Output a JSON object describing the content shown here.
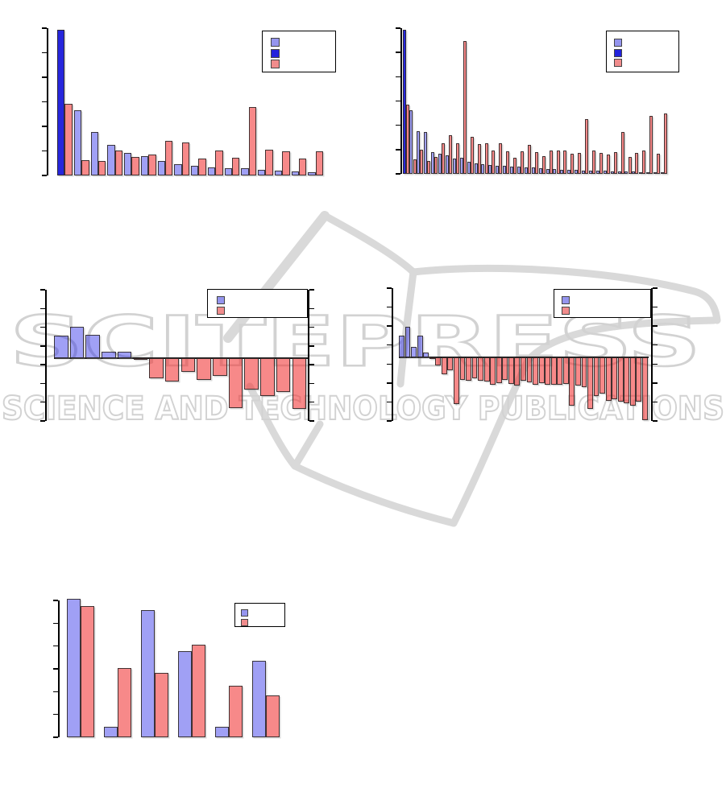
{
  "watermark": {
    "line1": "SCITEPRESS",
    "line2": "SCIENCE AND TECHNOLOGY PUBLICATIONS",
    "text_color": "#d2d2d2",
    "logo_color": "#d9d9d9",
    "logo_name": "open-book-logo"
  },
  "colors": {
    "light_blue": "rgba(28,28,230,0.42)",
    "dark_blue": "rgba(24,24,218,0.94)",
    "red": "rgba(242,52,52,0.58)",
    "swatch_light_blue": "#9595ee",
    "swatch_dark_blue": "#2222dd",
    "swatch_red": "#f08c8c",
    "axis": "#000000"
  },
  "chart_data": [
    {
      "name": "top-left-grouped-bar-chart",
      "type": "bar",
      "title": "",
      "xlabel": "",
      "ylabel": "",
      "x_tick_labels": [],
      "y_tick_labels": [],
      "ylim": [
        0,
        1
      ],
      "grid": false,
      "legend_position": "top-right",
      "legend": [
        "",
        "",
        ""
      ],
      "legend_swatch_colors": [
        "swatch_light_blue",
        "swatch_dark_blue",
        "swatch_red"
      ],
      "highlight_first_bar": true,
      "series": [
        {
          "name": "blue",
          "values": [
            1.0,
            0.45,
            0.3,
            0.21,
            0.155,
            0.135,
            0.1,
            0.075,
            0.065,
            0.055,
            0.05,
            0.047,
            0.04,
            0.035,
            0.025,
            0.02
          ]
        },
        {
          "name": "red",
          "values": [
            0.49,
            0.105,
            0.1,
            0.17,
            0.125,
            0.145,
            0.235,
            0.225,
            0.115,
            0.17,
            0.12,
            0.47,
            0.175,
            0.165,
            0.115,
            0.165
          ]
        }
      ]
    },
    {
      "name": "top-right-grouped-bar-chart",
      "type": "bar",
      "title": "",
      "xlabel": "",
      "ylabel": "",
      "x_tick_labels": [],
      "y_tick_labels": [],
      "ylim": [
        0,
        1
      ],
      "grid": false,
      "legend_position": "top-right",
      "legend": [
        "",
        "",
        ""
      ],
      "legend_swatch_colors": [
        "swatch_light_blue",
        "swatch_dark_blue",
        "swatch_red"
      ],
      "highlight_first_bar": true,
      "series": [
        {
          "name": "blue",
          "values": [
            1.0,
            0.44,
            0.295,
            0.29,
            0.15,
            0.14,
            0.127,
            0.107,
            0.11,
            0.084,
            0.075,
            0.065,
            0.062,
            0.056,
            0.056,
            0.05,
            0.05,
            0.047,
            0.043,
            0.037,
            0.035,
            0.032,
            0.03,
            0.028,
            0.027,
            0.025,
            0.023,
            0.022,
            0.02,
            0.019,
            0.018,
            0.016,
            0.015,
            0.013,
            0.012,
            0.011,
            0.01
          ]
        },
        {
          "name": "red",
          "values": [
            0.48,
            0.1,
            0.17,
            0.09,
            0.12,
            0.21,
            0.27,
            0.21,
            0.92,
            0.256,
            0.206,
            0.215,
            0.163,
            0.21,
            0.155,
            0.112,
            0.159,
            0.202,
            0.15,
            0.125,
            0.16,
            0.16,
            0.163,
            0.14,
            0.145,
            0.38,
            0.16,
            0.143,
            0.132,
            0.15,
            0.29,
            0.12,
            0.143,
            0.163,
            0.4,
            0.14,
            0.42
          ]
        }
      ]
    },
    {
      "name": "middle-left-signed-bar-chart",
      "type": "bar",
      "title": "",
      "xlabel": "",
      "ylabel": "",
      "x_tick_labels": [],
      "y_tick_labels": [],
      "ylim": [
        -1.0,
        1.05
      ],
      "grid": false,
      "legend_position": "top-right",
      "legend": [
        "",
        ""
      ],
      "legend_swatch_colors": [
        "swatch_light_blue",
        "swatch_red"
      ],
      "positive_color": "light_blue",
      "negative_color": "red",
      "values": [
        0.35,
        0.49,
        0.36,
        0.1,
        0.1,
        -0.02,
        -0.31,
        -0.36,
        -0.21,
        -0.34,
        -0.28,
        -0.78,
        -0.49,
        -0.59,
        -0.53,
        -0.79
      ]
    },
    {
      "name": "middle-right-signed-bar-chart",
      "type": "bar",
      "title": "",
      "xlabel": "",
      "ylabel": "",
      "x_tick_labels": [],
      "y_tick_labels": [],
      "ylim": [
        -1.0,
        1.05
      ],
      "grid": false,
      "legend_position": "top-right",
      "legend": [
        "",
        ""
      ],
      "legend_swatch_colors": [
        "swatch_light_blue",
        "swatch_red"
      ],
      "positive_color": "light_blue",
      "negative_color": "red",
      "values": [
        0.34,
        0.48,
        0.16,
        0.34,
        0.08,
        -0.03,
        -0.13,
        -0.26,
        -0.2,
        -0.72,
        -0.35,
        -0.36,
        -0.33,
        -0.36,
        -0.38,
        -0.42,
        -0.4,
        -0.35,
        -0.41,
        -0.44,
        -0.36,
        -0.39,
        -0.42,
        -0.4,
        -0.42,
        -0.43,
        -0.42,
        -0.41,
        -0.75,
        -0.44,
        -0.46,
        -0.8,
        -0.6,
        -0.56,
        -0.67,
        -0.65,
        -0.69,
        -0.71,
        -0.75,
        -0.69,
        -0.98
      ]
    },
    {
      "name": "bottom-left-grouped-bar-chart",
      "type": "bar",
      "title": "",
      "xlabel": "",
      "ylabel": "",
      "x_tick_labels": [],
      "y_tick_labels": [],
      "ylim": [
        0,
        1
      ],
      "grid": false,
      "legend_position": "top-right",
      "legend": [
        "",
        ""
      ],
      "legend_swatch_colors": [
        "swatch_light_blue",
        "swatch_red"
      ],
      "highlight_first_bar": false,
      "series": [
        {
          "name": "blue",
          "values": [
            1.0,
            0.075,
            0.92,
            0.62,
            0.075,
            0.55
          ]
        },
        {
          "name": "red",
          "values": [
            0.95,
            0.5,
            0.465,
            0.67,
            0.37,
            0.3
          ]
        }
      ]
    }
  ]
}
